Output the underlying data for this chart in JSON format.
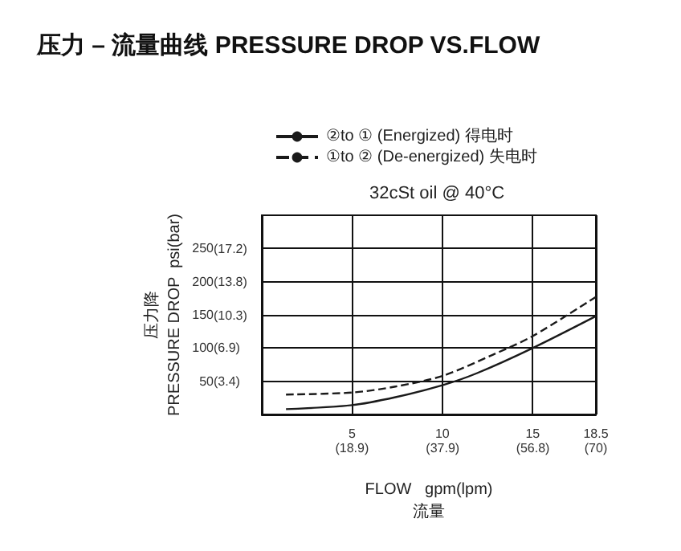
{
  "chart_data": {
    "type": "line",
    "title": "压力 – 流量曲线 PRESSURE DROP VS.FLOW",
    "subtitle": "32cSt oil @ 40°C",
    "xlabel": "FLOW   gpm(lpm)\n流量",
    "ylabel": "压力降\nPRESSURE DROP  psi(bar)",
    "series": [
      {
        "name": "②to ① (Energized) 得电时",
        "color": "#1a1a1a",
        "line_style": "solid",
        "x": [
          1.34,
          5,
          7.4,
          10,
          11.9,
          15,
          18.5
        ],
        "values": [
          8,
          14,
          26,
          44,
          62,
          100,
          148
        ]
      },
      {
        "name": "①to ② (De-energized) 失电时",
        "color": "#1a1a1a",
        "line_style": "dashed",
        "x": [
          1.34,
          5,
          7.4,
          10,
          12.8,
          15,
          18.5
        ],
        "values": [
          30,
          33,
          42,
          58,
          90,
          118,
          177
        ]
      }
    ],
    "xlim": [
      0,
      18.5
    ],
    "ylim": [
      0,
      300
    ],
    "xticks": [
      5,
      10,
      15,
      18.5
    ],
    "yticks": [
      50,
      100,
      150,
      200,
      250
    ],
    "x2lim": [
      0,
      70
    ],
    "x2ticks": [
      {
        "value": 18.9,
        "label": "(18.9)"
      },
      {
        "value": 37.9,
        "label": "(37.9)"
      },
      {
        "value": 56.8,
        "label": "(56.8)"
      },
      {
        "value": 70,
        "label": "(70)"
      }
    ],
    "y2lim": [
      0,
      20.7
    ],
    "y2ticks": [
      {
        "value": 3.4,
        "label": "(3.4)"
      },
      {
        "value": 6.9,
        "label": "(6.9)"
      },
      {
        "value": 10.3,
        "label": "(10.3)"
      },
      {
        "value": 13.8,
        "label": "(13.8)"
      },
      {
        "value": 17.2,
        "label": "(17.2)"
      }
    ],
    "grid": true,
    "legend": "top",
    "marker": "none"
  }
}
